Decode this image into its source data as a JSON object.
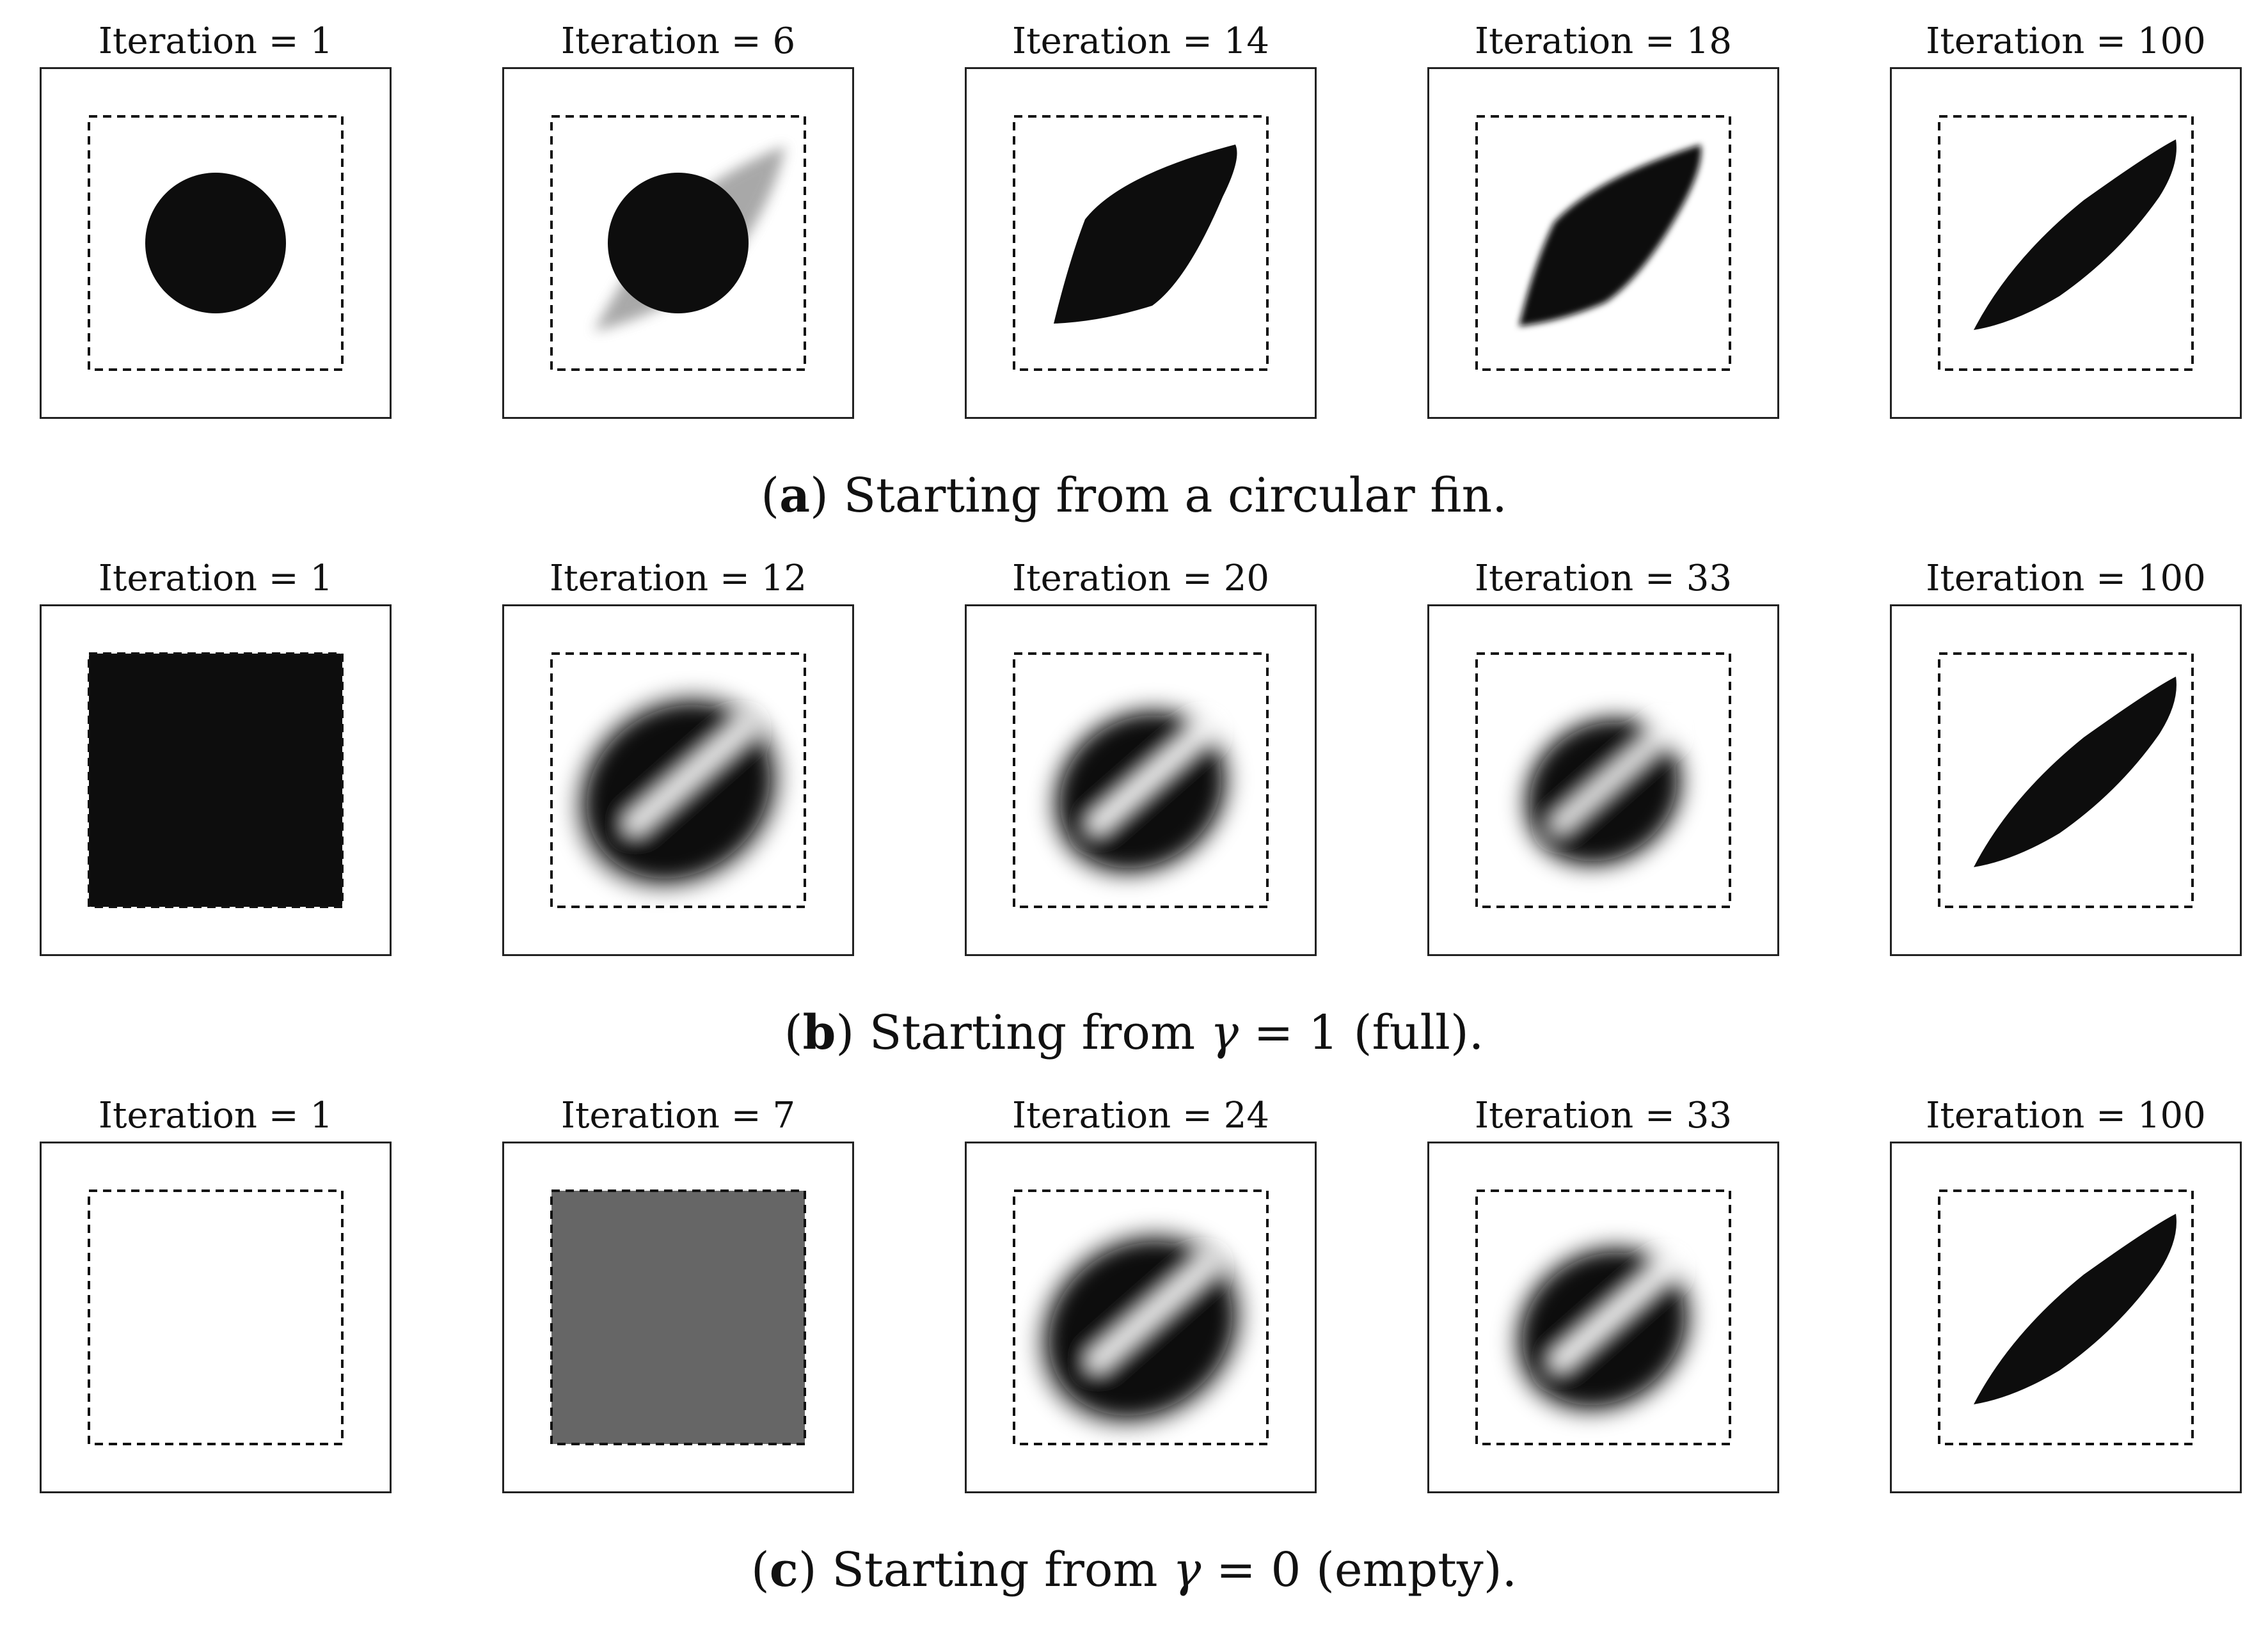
{
  "rows": [
    {
      "id": "a",
      "caption": {
        "letter": "a",
        "before": " Starting from a circular fin.",
        "gamma": "",
        "after": ""
      },
      "panels": [
        {
          "title_prefix": "Iteration",
          "equals": "=",
          "iteration": "1",
          "state": "circle"
        },
        {
          "title_prefix": "Iteration",
          "equals": "=",
          "iteration": "6",
          "state": "circle-blur"
        },
        {
          "title_prefix": "Iteration",
          "equals": "=",
          "iteration": "14",
          "state": "rhombus-wide"
        },
        {
          "title_prefix": "Iteration",
          "equals": "=",
          "iteration": "18",
          "state": "rhombus-mid"
        },
        {
          "title_prefix": "Iteration",
          "equals": "=",
          "iteration": "100",
          "state": "leaf"
        }
      ]
    },
    {
      "id": "b",
      "caption": {
        "letter": "b",
        "before": " Starting from ",
        "gamma": "γ",
        "after": " = 1 (full)."
      },
      "panels": [
        {
          "title_prefix": "Iteration",
          "equals": "=",
          "iteration": "1",
          "state": "full"
        },
        {
          "title_prefix": "Iteration",
          "equals": "=",
          "iteration": "12",
          "state": "blob-large"
        },
        {
          "title_prefix": "Iteration",
          "equals": "=",
          "iteration": "20",
          "state": "blob-mid"
        },
        {
          "title_prefix": "Iteration",
          "equals": "=",
          "iteration": "33",
          "state": "blob-small"
        },
        {
          "title_prefix": "Iteration",
          "equals": "=",
          "iteration": "100",
          "state": "leaf"
        }
      ]
    },
    {
      "id": "c",
      "caption": {
        "letter": "c",
        "before": " Starting from ",
        "gamma": "γ",
        "after": " = 0 (empty)."
      },
      "panels": [
        {
          "title_prefix": "Iteration",
          "equals": "=",
          "iteration": "1",
          "state": "empty"
        },
        {
          "title_prefix": "Iteration",
          "equals": "=",
          "iteration": "7",
          "state": "gray"
        },
        {
          "title_prefix": "Iteration",
          "equals": "=",
          "iteration": "24",
          "state": "blob-large"
        },
        {
          "title_prefix": "Iteration",
          "equals": "=",
          "iteration": "33",
          "state": "blob-mid"
        },
        {
          "title_prefix": "Iteration",
          "equals": "=",
          "iteration": "100",
          "state": "leaf"
        }
      ]
    }
  ],
  "colors": {
    "fin": "#0d0d0d",
    "gray_fill": "#666666",
    "frame": "#222222",
    "dashed": "#111111"
  }
}
